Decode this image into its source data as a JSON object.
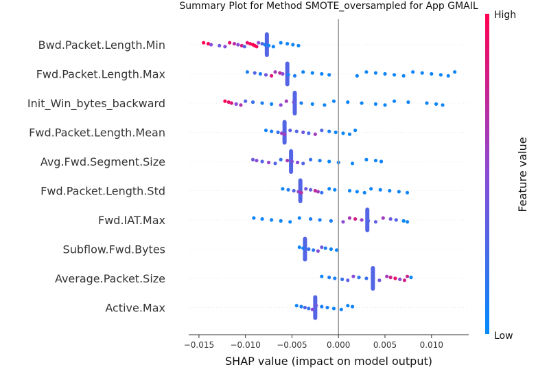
{
  "chart_data": {
    "type": "scatter",
    "title": "Summary Plot for Method SMOTE_oversampled for App GMAIL",
    "xlabel": "SHAP value (impact on model output)",
    "xlim": [
      -0.0161,
      0.014
    ],
    "xticks": [
      -0.015,
      -0.01,
      -0.005,
      0.0,
      0.005,
      0.01
    ],
    "xtick_labels": [
      "−0.015",
      "−0.010",
      "−0.005",
      "0.000",
      "0.005",
      "0.010"
    ],
    "features": [
      {
        "name": "Bwd.Packet.Length.Min",
        "points": [
          [
            -0.0145,
            1.0
          ],
          [
            -0.014,
            1.0
          ],
          [
            -0.0137,
            0.5
          ],
          [
            -0.0128,
            0.4
          ],
          [
            -0.0122,
            0.5
          ],
          [
            -0.0117,
            0.9
          ],
          [
            -0.0112,
            0.7
          ],
          [
            -0.0108,
            0.5
          ],
          [
            -0.0104,
            0.8
          ],
          [
            -0.0101,
            0.3
          ],
          [
            -0.0098,
            0.9
          ],
          [
            -0.0095,
            0.95
          ],
          [
            -0.0092,
            1.0
          ],
          [
            -0.009,
            1.0
          ],
          [
            -0.0088,
            0.95
          ],
          [
            -0.0086,
            0.5
          ],
          [
            -0.0082,
            0.3
          ],
          [
            -0.0079,
            0.1
          ],
          [
            -0.0075,
            0.05
          ],
          [
            -0.007,
            0.05
          ],
          [
            -0.0062,
            0.05
          ],
          [
            -0.0055,
            0.05
          ],
          [
            -0.0049,
            0.05
          ],
          [
            -0.0043,
            0.05
          ]
        ],
        "spike": -0.0077
      },
      {
        "name": "Fwd.Packet.Length.Max",
        "points": [
          [
            -0.0098,
            0.1
          ],
          [
            -0.009,
            0.3
          ],
          [
            -0.0084,
            0.1
          ],
          [
            -0.0078,
            0.4
          ],
          [
            -0.0072,
            0.85
          ],
          [
            -0.0068,
            0.6
          ],
          [
            -0.0063,
            0.7
          ],
          [
            -0.006,
            0.5
          ],
          [
            -0.0054,
            0.1
          ],
          [
            -0.0047,
            0.1
          ],
          [
            -0.0038,
            0.05
          ],
          [
            -0.0028,
            0.05
          ],
          [
            -0.0018,
            0.05
          ],
          [
            -0.001,
            0.05
          ],
          [
            0.002,
            0.05
          ],
          [
            0.003,
            0.05
          ],
          [
            0.004,
            0.05
          ],
          [
            0.005,
            0.05
          ],
          [
            0.006,
            0.05
          ],
          [
            0.007,
            0.05
          ],
          [
            0.008,
            0.05
          ],
          [
            0.009,
            0.05
          ],
          [
            0.01,
            0.05
          ],
          [
            0.011,
            0.05
          ],
          [
            0.0118,
            0.05
          ],
          [
            0.0125,
            0.05
          ]
        ],
        "spike": -0.0055
      },
      {
        "name": "Init_Win_bytes_backward",
        "points": [
          [
            -0.0122,
            1.0
          ],
          [
            -0.0118,
            0.9
          ],
          [
            -0.0115,
            0.85
          ],
          [
            -0.011,
            0.5
          ],
          [
            -0.0105,
            0.65
          ],
          [
            -0.01,
            0.3
          ],
          [
            -0.0092,
            0.2
          ],
          [
            -0.0082,
            0.1
          ],
          [
            -0.0072,
            0.05
          ],
          [
            -0.0062,
            0.5
          ],
          [
            -0.0056,
            0.6
          ],
          [
            -0.0048,
            0.4
          ],
          [
            -0.004,
            0.1
          ],
          [
            -0.0028,
            0.05
          ],
          [
            -0.0015,
            0.05
          ],
          [
            -0.0005,
            0.05
          ],
          [
            0.001,
            0.05
          ],
          [
            0.0025,
            0.05
          ],
          [
            0.004,
            0.05
          ],
          [
            0.005,
            0.05
          ],
          [
            0.006,
            0.05
          ],
          [
            0.0075,
            0.05
          ],
          [
            0.0095,
            0.05
          ],
          [
            0.0105,
            0.05
          ],
          [
            0.0112,
            0.05
          ]
        ],
        "spike": -0.0047
      },
      {
        "name": "Fwd.Packet.Length.Mean",
        "points": [
          [
            -0.0078,
            0.05
          ],
          [
            -0.0072,
            0.1
          ],
          [
            -0.0065,
            0.2
          ],
          [
            -0.0061,
            0.55
          ],
          [
            -0.0058,
            0.6
          ],
          [
            -0.0052,
            0.35
          ],
          [
            -0.0045,
            0.3
          ],
          [
            -0.0038,
            0.4
          ],
          [
            -0.0032,
            0.25
          ],
          [
            -0.0025,
            0.6
          ],
          [
            -0.0018,
            0.3
          ],
          [
            -0.001,
            0.1
          ],
          [
            -0.0003,
            0.05
          ],
          [
            0.0005,
            0.05
          ],
          [
            0.0012,
            0.05
          ],
          [
            0.0018,
            0.05
          ]
        ],
        "spike": -0.0058
      },
      {
        "name": "Avg.Fwd.Segment.Size",
        "points": [
          [
            -0.0092,
            0.4
          ],
          [
            -0.0088,
            0.5
          ],
          [
            -0.0082,
            0.3
          ],
          [
            -0.0075,
            0.55
          ],
          [
            -0.0068,
            0.3
          ],
          [
            -0.0062,
            0.2
          ],
          [
            -0.0055,
            0.6
          ],
          [
            -0.005,
            0.45
          ],
          [
            -0.0044,
            0.5
          ],
          [
            -0.0038,
            0.3
          ],
          [
            -0.003,
            0.2
          ],
          [
            -0.002,
            0.1
          ],
          [
            -0.001,
            0.05
          ],
          [
            0.0,
            0.05
          ],
          [
            0.0015,
            0.05
          ],
          [
            0.003,
            0.05
          ],
          [
            0.004,
            0.05
          ],
          [
            0.0046,
            0.05
          ]
        ],
        "spike": -0.0051
      },
      {
        "name": "Fwd.Packet.Length.Std",
        "points": [
          [
            -0.006,
            0.05
          ],
          [
            -0.0054,
            0.1
          ],
          [
            -0.0048,
            0.3
          ],
          [
            -0.0043,
            0.55
          ],
          [
            -0.004,
            0.7
          ],
          [
            -0.0035,
            0.4
          ],
          [
            -0.003,
            0.35
          ],
          [
            -0.0025,
            0.75
          ],
          [
            -0.0022,
            0.6
          ],
          [
            -0.0018,
            0.2
          ],
          [
            -0.001,
            0.05
          ],
          [
            -0.0004,
            0.05
          ],
          [
            0.0012,
            0.05
          ],
          [
            0.002,
            0.05
          ],
          [
            0.0028,
            0.05
          ],
          [
            0.0035,
            0.05
          ],
          [
            0.0045,
            0.05
          ],
          [
            0.0055,
            0.05
          ],
          [
            0.0065,
            0.05
          ],
          [
            0.0074,
            0.05
          ]
        ],
        "spike": -0.0041
      },
      {
        "name": "Fwd.IAT.Max",
        "points": [
          [
            -0.0091,
            0.05
          ],
          [
            -0.0082,
            0.05
          ],
          [
            -0.0072,
            0.05
          ],
          [
            -0.0062,
            0.05
          ],
          [
            -0.0052,
            0.05
          ],
          [
            -0.0042,
            0.05
          ],
          [
            -0.003,
            0.1
          ],
          [
            -0.002,
            0.1
          ],
          [
            -0.0008,
            0.1
          ],
          [
            0.0005,
            0.5
          ],
          [
            0.0012,
            0.65
          ],
          [
            0.0018,
            0.8
          ],
          [
            0.0025,
            0.55
          ],
          [
            0.0032,
            0.3
          ],
          [
            0.004,
            0.35
          ],
          [
            0.0048,
            0.6
          ],
          [
            0.0056,
            0.4
          ],
          [
            0.0062,
            0.3
          ],
          [
            0.007,
            0.05
          ],
          [
            0.0074,
            0.05
          ]
        ],
        "spike": 0.0031
      },
      {
        "name": "Subflow.Fwd.Bytes",
        "points": [
          [
            -0.0042,
            0.05
          ],
          [
            -0.0038,
            0.1
          ],
          [
            -0.0032,
            0.2
          ],
          [
            -0.0027,
            0.15
          ],
          [
            -0.0022,
            0.5
          ],
          [
            -0.0018,
            0.4
          ],
          [
            -0.0014,
            0.1
          ],
          [
            -0.0008,
            0.05
          ],
          [
            -0.0002,
            0.05
          ]
        ],
        "spike": -0.0036
      },
      {
        "name": "Average.Packet.Size",
        "points": [
          [
            -0.0018,
            0.05
          ],
          [
            -0.001,
            0.1
          ],
          [
            -0.0004,
            0.1
          ],
          [
            0.0004,
            0.2
          ],
          [
            0.001,
            0.35
          ],
          [
            0.0016,
            0.5
          ],
          [
            0.0022,
            0.15
          ],
          [
            0.003,
            0.2
          ],
          [
            0.0037,
            0.3
          ],
          [
            0.0044,
            0.4
          ],
          [
            0.0052,
            0.6
          ],
          [
            0.0056,
            0.8
          ],
          [
            0.0061,
            0.9
          ],
          [
            0.0066,
            0.5
          ],
          [
            0.0071,
            0.8
          ],
          [
            0.0074,
            0.75
          ],
          [
            0.0078,
            0.05
          ]
        ],
        "spike": 0.0037
      },
      {
        "name": "Active.Max",
        "points": [
          [
            -0.0045,
            0.05
          ],
          [
            -0.004,
            0.1
          ],
          [
            -0.0036,
            0.3
          ],
          [
            -0.0032,
            0.2
          ],
          [
            -0.0028,
            0.5
          ],
          [
            -0.0024,
            0.4
          ],
          [
            -0.0018,
            0.1
          ],
          [
            -0.0012,
            0.1
          ],
          [
            -0.0005,
            0.05
          ],
          [
            0.0003,
            0.05
          ],
          [
            0.001,
            0.05
          ],
          [
            0.0015,
            0.05
          ]
        ],
        "spike": -0.0025
      }
    ],
    "colorbar": {
      "label": "Feature value",
      "high_label": "High",
      "low_label": "Low",
      "low_color": "#008bfb",
      "high_color": "#ff0051"
    },
    "zero_line": 0.0,
    "grid": false
  }
}
